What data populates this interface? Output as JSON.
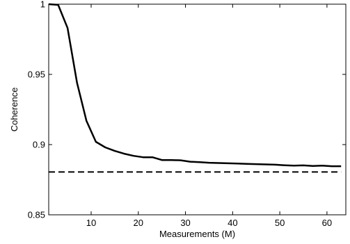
{
  "chart_data": {
    "type": "line",
    "title": "",
    "xlabel": "Measurements (M)",
    "ylabel": "Coherence",
    "xlim": [
      1,
      64
    ],
    "ylim": [
      0.85,
      1
    ],
    "xticks": [
      10,
      20,
      30,
      40,
      50,
      60
    ],
    "xtick_labels": [
      "10",
      "20",
      "30",
      "40",
      "50",
      "60"
    ],
    "yticks": [
      0.85,
      0.9,
      0.95,
      1
    ],
    "ytick_labels": [
      "0.85",
      "0.9",
      "0.95",
      "1"
    ],
    "grid": false,
    "line_color": "#000000",
    "series": [
      {
        "style": "solid",
        "x": [
          1,
          3,
          5,
          7,
          9,
          11,
          13,
          15,
          17,
          19,
          21,
          23,
          25,
          27,
          29,
          31,
          33,
          35,
          37,
          39,
          41,
          43,
          45,
          47,
          49,
          51,
          53,
          55,
          57,
          59,
          61,
          63
        ],
        "y": [
          1.0,
          0.9995,
          0.983,
          0.944,
          0.917,
          0.902,
          0.898,
          0.8955,
          0.8935,
          0.892,
          0.891,
          0.891,
          0.889,
          0.889,
          0.8888,
          0.8878,
          0.8875,
          0.8871,
          0.8869,
          0.8867,
          0.8865,
          0.8863,
          0.8861,
          0.8859,
          0.8857,
          0.8853,
          0.885,
          0.8852,
          0.8848,
          0.885,
          0.8846,
          0.8846
        ]
      },
      {
        "style": "dashed",
        "x": [
          1,
          63
        ],
        "y": [
          0.8805,
          0.8805
        ]
      }
    ]
  }
}
